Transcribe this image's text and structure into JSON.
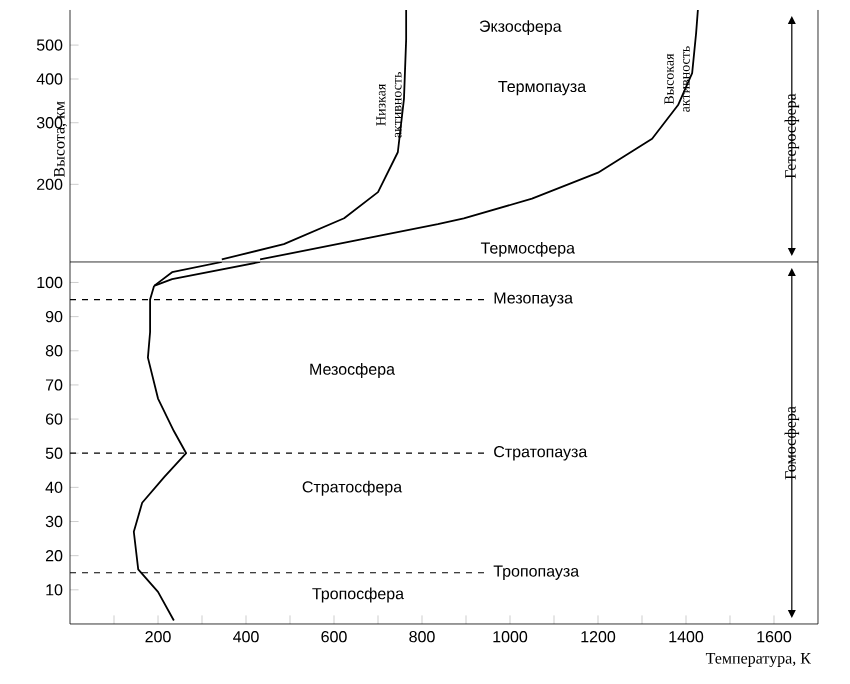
{
  "chart_data": [
    {
      "type": "line",
      "log": "y",
      "xlim": [
        0,
        1700
      ],
      "ylim": [
        120,
        630
      ],
      "yticks": [
        200,
        300,
        400,
        500
      ],
      "ylabel": "Высота, км",
      "tick_labels": "y",
      "annotations": [
        "Экзосфера",
        "Термопауза",
        "Термосфера",
        "Гетеросфера"
      ],
      "series": [
        {
          "name": "Низкая активность",
          "color": "#000000",
          "x": [
            345,
            486,
            623,
            700,
            745,
            759,
            764,
            764
          ],
          "values": [
            122,
            135,
            160,
            190,
            247,
            351,
            520,
            630
          ]
        },
        {
          "name": "Высокая активность",
          "color": "#000000",
          "x": [
            432,
            836,
            895,
            1050,
            1200,
            1323,
            1382,
            1414,
            1423,
            1427
          ],
          "values": [
            122,
            154,
            160,
            182,
            216,
            270,
            337,
            416,
            541,
            630
          ]
        }
      ]
    },
    {
      "type": "line",
      "xlim": [
        0,
        1700
      ],
      "ylim": [
        0,
        106
      ],
      "xticks": [
        {
          "value": 100,
          "label": null
        },
        200,
        {
          "value": 300,
          "label": null
        },
        400,
        {
          "value": 500,
          "label": null
        },
        600,
        {
          "value": 700,
          "label": null
        },
        800,
        {
          "value": 900,
          "label": null
        },
        1000,
        {
          "value": 1100,
          "label": null
        },
        1200,
        {
          "value": 1300,
          "label": null
        },
        1400,
        {
          "value": 1500,
          "label": null
        },
        1600
      ],
      "yticks": [
        10,
        20,
        30,
        40,
        50,
        60,
        70,
        80,
        90,
        100
      ],
      "xlabel": "Температура, К",
      "ref_lines": [
        {
          "axis": "y",
          "value": 15,
          "label": "Тропопауза",
          "line_style": "dashed"
        },
        {
          "axis": "y",
          "value": 50,
          "label": "Стратопауза",
          "line_style": "dashed"
        },
        {
          "axis": "y",
          "value": 95,
          "label": "Мезопауза",
          "line_style": "dashed"
        }
      ],
      "annotations": [
        "Тропосфера",
        "Стратосфера",
        "Мезосфера",
        "Гомосфера"
      ],
      "series": [
        {
          "color": "#000000",
          "x": [
            236,
            200,
            155,
            145,
            164,
            214,
            264,
            236,
            200,
            177,
            182,
            182,
            191
          ],
          "values": [
            1,
            9.4,
            16,
            27,
            35.5,
            43,
            50,
            56.5,
            66,
            78,
            85.5,
            95,
            99
          ]
        },
        {
          "color": "#000000",
          "x": [
            191,
            232,
            345
          ],
          "values": [
            99,
            103,
            106
          ]
        },
        {
          "color": "#000000",
          "x": [
            191,
            232,
            432
          ],
          "values": [
            99,
            101,
            106
          ]
        }
      ]
    }
  ]
}
